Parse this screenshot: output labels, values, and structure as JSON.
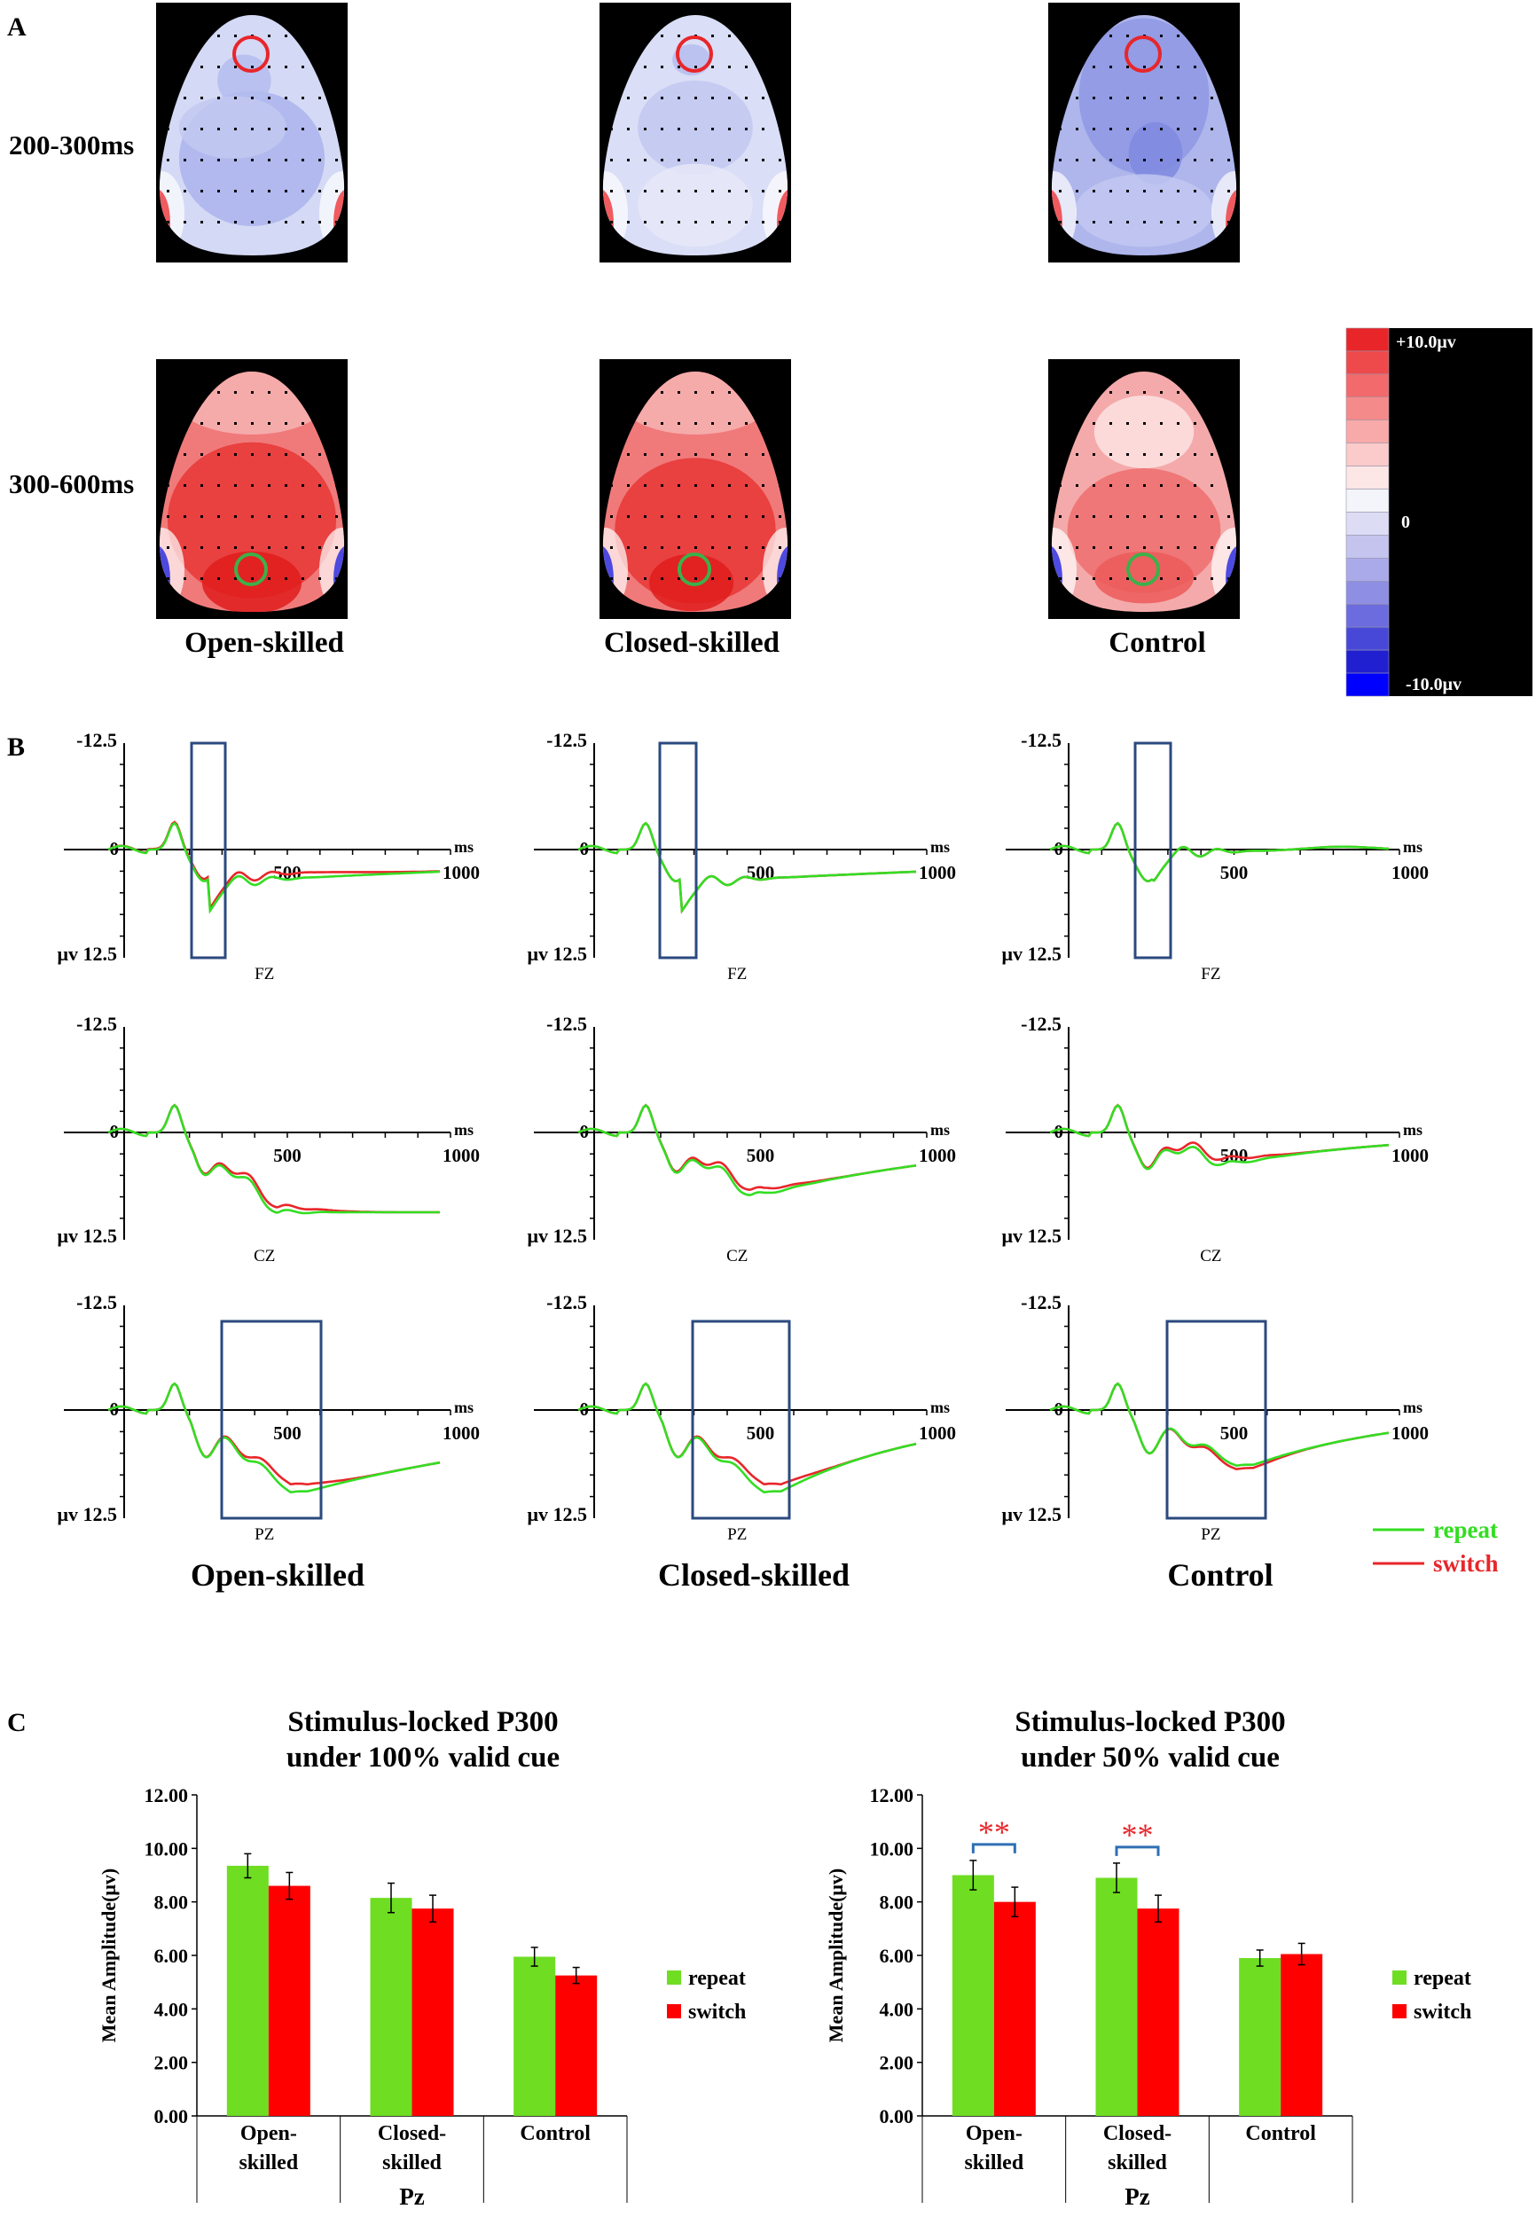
{
  "panels": {
    "a": "A",
    "b": "B",
    "c": "C"
  },
  "panel_a": {
    "windows": [
      "200-300ms",
      "300-600ms"
    ],
    "groups": [
      "Open-skilled",
      "Closed-skilled",
      "Control"
    ],
    "colorbar": {
      "max_label": "+10.0μv",
      "zero_label": "0",
      "min_label": "-10.0μv",
      "colors": [
        "#e8262a",
        "#ee4a4c",
        "#f26a6b",
        "#f58a8a",
        "#f8aaaa",
        "#fbcaca",
        "#fde6e6",
        "#f4f4fb",
        "#dcdcf5",
        "#c4c4ef",
        "#aaaaea",
        "#8e8ee4",
        "#6c6cde",
        "#4848d8",
        "#2020d0",
        "#0000ff"
      ]
    },
    "markers": {
      "frontal": "#e8262a",
      "parietal": "#3cb04a"
    }
  },
  "panel_b": {
    "groups": [
      "Open-skilled",
      "Closed-skilled",
      "Control"
    ],
    "electrodes": [
      "FZ",
      "CZ",
      "PZ"
    ],
    "y_top_label": "-12.5",
    "y_bottom_label": "μv 12.5",
    "zero_label": "0",
    "x_unit": "ms",
    "x_tick_labels": [
      "500",
      "1000"
    ],
    "legend": [
      {
        "name": "repeat",
        "color": "#33dd22"
      },
      {
        "name": "switch",
        "color": "#e8262a"
      }
    ]
  },
  "chart_data": [
    {
      "type": "bar",
      "title": "Stimulus-locked P300 under 100% valid cue",
      "title_lines": [
        "Stimulus-locked P300",
        "under 100% valid cue"
      ],
      "categories": [
        [
          "Open-",
          "skilled"
        ],
        [
          "Closed-",
          "skilled"
        ],
        [
          "Control"
        ]
      ],
      "xlabel": "Pz",
      "ylabel": "Mean Amplitude(μv)",
      "ylim": [
        0,
        12
      ],
      "yticks": [
        "0.00",
        "2.00",
        "4.00",
        "6.00",
        "8.00",
        "10.00",
        "12.00"
      ],
      "series": [
        {
          "name": "repeat",
          "color": "#6fdd22",
          "values": [
            9.35,
            8.15,
            5.95
          ],
          "errors": [
            0.45,
            0.55,
            0.35
          ]
        },
        {
          "name": "switch",
          "color": "#ff0000",
          "values": [
            8.6,
            7.75,
            5.25
          ],
          "errors": [
            0.5,
            0.5,
            0.3
          ]
        }
      ],
      "significance": []
    },
    {
      "type": "bar",
      "title": "Stimulus-locked P300 under 50% valid cue",
      "title_lines": [
        "Stimulus-locked P300",
        "under 50% valid cue"
      ],
      "categories": [
        [
          "Open-",
          "skilled"
        ],
        [
          "Closed-",
          "skilled"
        ],
        [
          "Control"
        ]
      ],
      "xlabel": "Pz",
      "ylabel": "Mean Amplitude(μv)",
      "ylim": [
        0,
        12
      ],
      "yticks": [
        "0.00",
        "2.00",
        "4.00",
        "6.00",
        "8.00",
        "10.00",
        "12.00"
      ],
      "series": [
        {
          "name": "repeat",
          "color": "#6fdd22",
          "values": [
            9.0,
            8.9,
            5.9
          ],
          "errors": [
            0.55,
            0.55,
            0.3
          ]
        },
        {
          "name": "switch",
          "color": "#ff0000",
          "values": [
            8.0,
            7.75,
            6.05
          ],
          "errors": [
            0.55,
            0.5,
            0.4
          ]
        }
      ],
      "significance": [
        {
          "category": 0,
          "label": "**"
        },
        {
          "category": 1,
          "label": "**"
        }
      ]
    }
  ]
}
